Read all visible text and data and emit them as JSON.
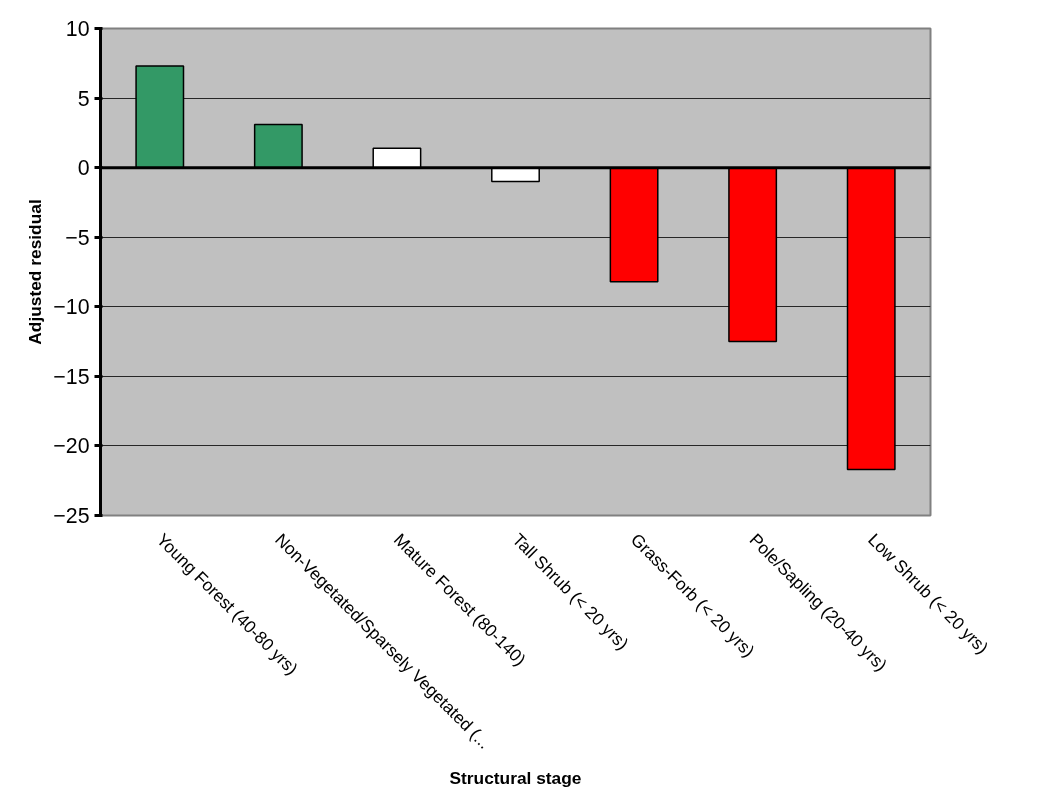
{
  "chart_data": {
    "type": "bar",
    "xlabel": "Structural stage",
    "ylabel": "Adjusted residual",
    "categories": [
      "Young Forest (40-80 yrs)",
      "Non-Vegetated/Sparsely Vegetated (...",
      "Mature Forest (80-140)",
      "Tall Shrub (< 20 yrs)",
      "Grass-Forb (< 20 yrs)",
      "Pole/Sapling (20-40 yrs)",
      "Low Shrub (< 20 yrs)"
    ],
    "values": [
      7.3,
      3.1,
      1.4,
      -1.0,
      -8.2,
      -12.5,
      -21.7
    ],
    "colors": [
      "#339966",
      "#339966",
      "#ffffff",
      "#ffffff",
      "#ff0000",
      "#ff0000",
      "#ff0000"
    ],
    "ylim": [
      -25,
      10
    ],
    "yticks": [
      -25,
      -20,
      -15,
      -10,
      -5,
      0,
      5,
      10
    ],
    "grid": "y"
  }
}
